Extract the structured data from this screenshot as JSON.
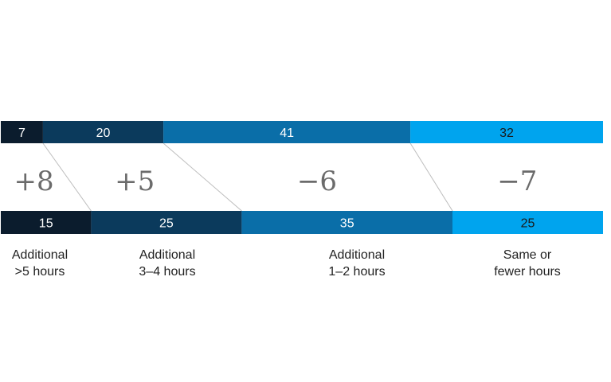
{
  "chart_data": {
    "type": "stacked-bar-comparison",
    "categories": [
      {
        "line1": "Additional",
        "line2": ">5 hours"
      },
      {
        "line1": "Additional",
        "line2": "3–4 hours"
      },
      {
        "line1": "Additional",
        "line2": "1–2 hours"
      },
      {
        "line1": "Same or",
        "line2": "fewer hours"
      }
    ],
    "top_values": [
      7,
      20,
      41,
      32
    ],
    "bottom_values": [
      15,
      25,
      35,
      25
    ],
    "changes": [
      "+8",
      "+5",
      "−6",
      "−7"
    ],
    "colors": [
      "#0b1c2d",
      "#0b3a5c",
      "#0a6ea8",
      "#00a4ee"
    ],
    "label_colors": [
      "#ffffff",
      "#ffffff",
      "#ffffff",
      "#1a1a1a"
    ]
  }
}
